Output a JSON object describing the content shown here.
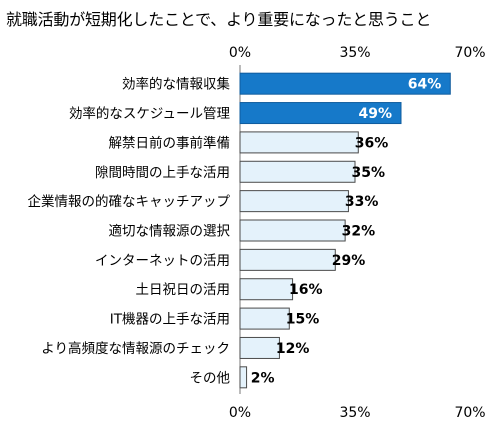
{
  "chart_data": {
    "type": "bar",
    "orientation": "horizontal",
    "title": "就職活動が短期化したことで、より重要になったと思うこと",
    "categories": [
      "効率的な情報収集",
      "効率的なスケジュール管理",
      "解禁日前の事前準備",
      "隙間時間の上手な活用",
      "企業情報の的確なキャッチアップ",
      "適切な情報源の選択",
      "インターネットの活用",
      "土日祝日の活用",
      "IT機器の上手な活用",
      "より高頻度な情報源のチェック",
      "その他"
    ],
    "values": [
      64,
      49,
      36,
      35,
      33,
      32,
      29,
      16,
      15,
      12,
      2
    ],
    "value_labels": [
      "64%",
      "49%",
      "36%",
      "35%",
      "33%",
      "32%",
      "29%",
      "16%",
      "15%",
      "12%",
      "2%"
    ],
    "highlighted": [
      true,
      true,
      false,
      false,
      false,
      false,
      false,
      false,
      false,
      false,
      false
    ],
    "xlim": [
      0,
      70
    ],
    "x_ticks": [
      "0%",
      "35%",
      "70%"
    ],
    "ticks_top_and_bottom": true,
    "grid": false,
    "colors": {
      "highlight_fill": "#1679c9",
      "highlight_stroke": "#0f5c9e",
      "normal_fill": "#e4f2fb",
      "normal_stroke": "#4a4a4a",
      "highlight_label": "#ffffff",
      "normal_label": "#000000",
      "axis": "#777777"
    }
  }
}
